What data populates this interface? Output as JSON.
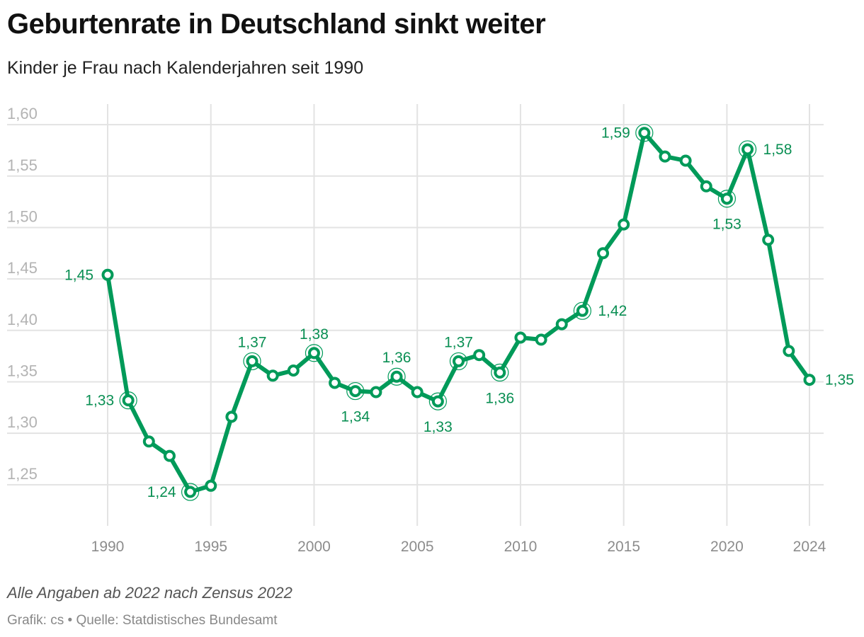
{
  "header": {
    "title": "Geburtenrate in Deutschland sinkt weiter",
    "subtitle": "Kinder je Frau nach Kalenderjahren seit 1990"
  },
  "footer": {
    "note": "Alle Angaben ab 2022 nach Zensus 2022",
    "source": "Grafik: cs • Quelle: Statdistisches Bundesamt"
  },
  "colors": {
    "line": "#009a59",
    "label": "#0a8f53",
    "grid": "#e3e3e3"
  },
  "chart_data": {
    "type": "line",
    "title": "Geburtenrate in Deutschland sinkt weiter",
    "subtitle": "Kinder je Frau nach Kalenderjahren seit 1990",
    "xlabel": "",
    "ylabel": "",
    "xlim": [
      1990,
      2024
    ],
    "ylim": [
      1.21,
      1.62
    ],
    "grid": true,
    "y_ticks": [
      "1,25",
      "1,30",
      "1,35",
      "1,40",
      "1,45",
      "1,50",
      "1,55",
      "1,60"
    ],
    "y_tick_values": [
      1.25,
      1.3,
      1.35,
      1.4,
      1.45,
      1.5,
      1.55,
      1.6
    ],
    "x_ticks": [
      "1990",
      "1995",
      "2000",
      "2005",
      "2010",
      "2015",
      "2020",
      "2024"
    ],
    "x_tick_values": [
      1990,
      1995,
      2000,
      2005,
      2010,
      2015,
      2020,
      2024
    ],
    "x": [
      1990,
      1991,
      1992,
      1993,
      1994,
      1995,
      1996,
      1997,
      1998,
      1999,
      2000,
      2001,
      2002,
      2003,
      2004,
      2005,
      2006,
      2007,
      2008,
      2009,
      2010,
      2011,
      2012,
      2013,
      2014,
      2015,
      2016,
      2017,
      2018,
      2019,
      2020,
      2021,
      2022,
      2023,
      2024
    ],
    "values": [
      1.454,
      1.332,
      1.292,
      1.278,
      1.243,
      1.249,
      1.316,
      1.37,
      1.356,
      1.361,
      1.378,
      1.349,
      1.341,
      1.34,
      1.355,
      1.34,
      1.331,
      1.37,
      1.376,
      1.359,
      1.393,
      1.391,
      1.406,
      1.419,
      1.475,
      1.503,
      1.592,
      1.569,
      1.565,
      1.54,
      1.528,
      1.576,
      1.488,
      1.38,
      1.352
    ],
    "annotations": [
      {
        "year": 1990,
        "label": "1,45",
        "pos": "left"
      },
      {
        "year": 1991,
        "label": "1,33",
        "pos": "left"
      },
      {
        "year": 1994,
        "label": "1,24",
        "pos": "left"
      },
      {
        "year": 1997,
        "label": "1,37",
        "pos": "above"
      },
      {
        "year": 2000,
        "label": "1,38",
        "pos": "above"
      },
      {
        "year": 2002,
        "label": "1,34",
        "pos": "below"
      },
      {
        "year": 2004,
        "label": "1,36",
        "pos": "above"
      },
      {
        "year": 2006,
        "label": "1,33",
        "pos": "below"
      },
      {
        "year": 2007,
        "label": "1,37",
        "pos": "above"
      },
      {
        "year": 2009,
        "label": "1,36",
        "pos": "below"
      },
      {
        "year": 2013,
        "label": "1,42",
        "pos": "right"
      },
      {
        "year": 2016,
        "label": "1,59",
        "pos": "left"
      },
      {
        "year": 2020,
        "label": "1,53",
        "pos": "below"
      },
      {
        "year": 2021,
        "label": "1,58",
        "pos": "right"
      },
      {
        "year": 2024,
        "label": "1,35",
        "pos": "right"
      }
    ]
  }
}
